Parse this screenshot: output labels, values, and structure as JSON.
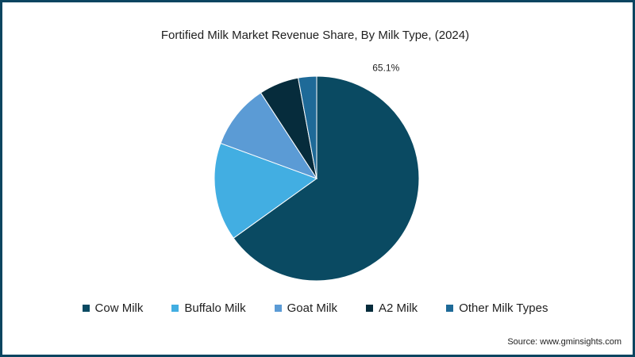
{
  "chart_data": {
    "type": "pie",
    "title": "Fortified Milk Market Revenue Share, By Milk Type, (2024)",
    "categories": [
      "Cow Milk",
      "Buffalo Milk",
      "Goat Milk",
      "A2 Milk",
      "Other Milk Types"
    ],
    "values": [
      65.1,
      15.5,
      10.2,
      6.3,
      2.9
    ],
    "colors": [
      "#0a4a62",
      "#42aee2",
      "#5b9bd5",
      "#062c3c",
      "#1e6a98"
    ],
    "data_labels": [
      "65.1%",
      "",
      "",
      "",
      ""
    ],
    "legend_position": "bottom"
  },
  "source": "Source: www.gminsights.com"
}
